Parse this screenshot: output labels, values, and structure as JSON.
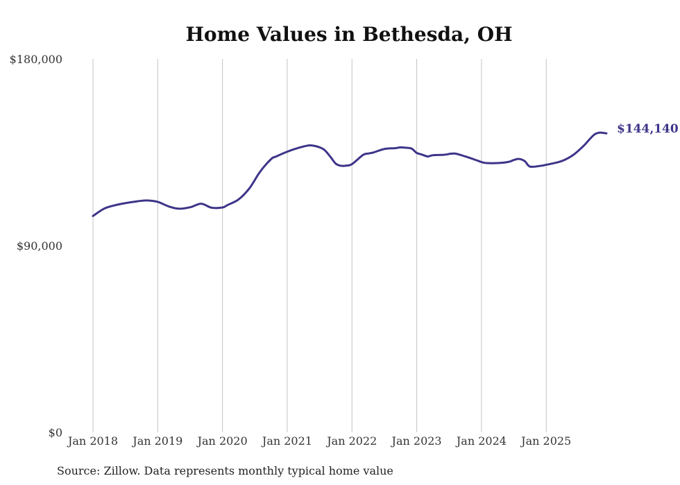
{
  "chart_data": {
    "type": "line",
    "title": "Home Values in Bethesda, OH",
    "xlabel": "",
    "ylabel": "",
    "ylim": [
      0,
      180000
    ],
    "y_ticks": [
      {
        "value": 0,
        "label": "$0"
      },
      {
        "value": 90000,
        "label": "$90,000"
      },
      {
        "value": 180000,
        "label": "$180,000"
      }
    ],
    "x_ticks": [
      {
        "value": 2018,
        "label": "Jan 2018"
      },
      {
        "value": 2019,
        "label": "Jan 2019"
      },
      {
        "value": 2020,
        "label": "Jan 2020"
      },
      {
        "value": 2021,
        "label": "Jan 2021"
      },
      {
        "value": 2022,
        "label": "Jan 2022"
      },
      {
        "value": 2023,
        "label": "Jan 2023"
      },
      {
        "value": 2024,
        "label": "Jan 2024"
      },
      {
        "value": 2025,
        "label": "Jan 2025"
      }
    ],
    "xlim": [
      2018,
      2025.93
    ],
    "grid": "vertical",
    "series": [
      {
        "name": "Typical home value",
        "color": "#3d3489",
        "x": [
          2018.0,
          2018.17,
          2018.33,
          2018.5,
          2018.67,
          2018.83,
          2019.0,
          2019.17,
          2019.33,
          2019.5,
          2019.67,
          2019.83,
          2020.0,
          2020.08,
          2020.25,
          2020.42,
          2020.58,
          2020.75,
          2020.83,
          2021.0,
          2021.17,
          2021.33,
          2021.42,
          2021.5,
          2021.58,
          2021.67,
          2021.75,
          2021.83,
          2021.92,
          2022.0,
          2022.17,
          2022.25,
          2022.33,
          2022.5,
          2022.67,
          2022.75,
          2022.83,
          2022.92,
          2023.0,
          2023.08,
          2023.17,
          2023.25,
          2023.42,
          2023.58,
          2023.75,
          2023.92,
          2024.0,
          2024.08,
          2024.25,
          2024.42,
          2024.5,
          2024.58,
          2024.67,
          2024.75,
          2024.92,
          2025.0,
          2025.08,
          2025.25,
          2025.42,
          2025.58,
          2025.67,
          2025.75,
          2025.83,
          2025.93
        ],
        "values": [
          104300,
          107800,
          109400,
          110500,
          111300,
          111800,
          111100,
          108900,
          107800,
          108500,
          110200,
          108300,
          108400,
          109600,
          112300,
          117800,
          125600,
          131700,
          133000,
          135300,
          137100,
          138300,
          138100,
          137400,
          136000,
          132700,
          129500,
          128500,
          128600,
          129300,
          133700,
          134400,
          134900,
          136600,
          137000,
          137400,
          137200,
          136800,
          134700,
          133900,
          133000,
          133600,
          133800,
          134400,
          133000,
          131200,
          130300,
          129800,
          129800,
          130400,
          131300,
          131800,
          130700,
          128100,
          128500,
          129000,
          129500,
          130900,
          133800,
          138200,
          141300,
          143700,
          144500,
          144140
        ]
      }
    ],
    "end_label": "$144,140"
  },
  "footer": {
    "source": "Source: Zillow. Data represents monthly typical home value"
  }
}
